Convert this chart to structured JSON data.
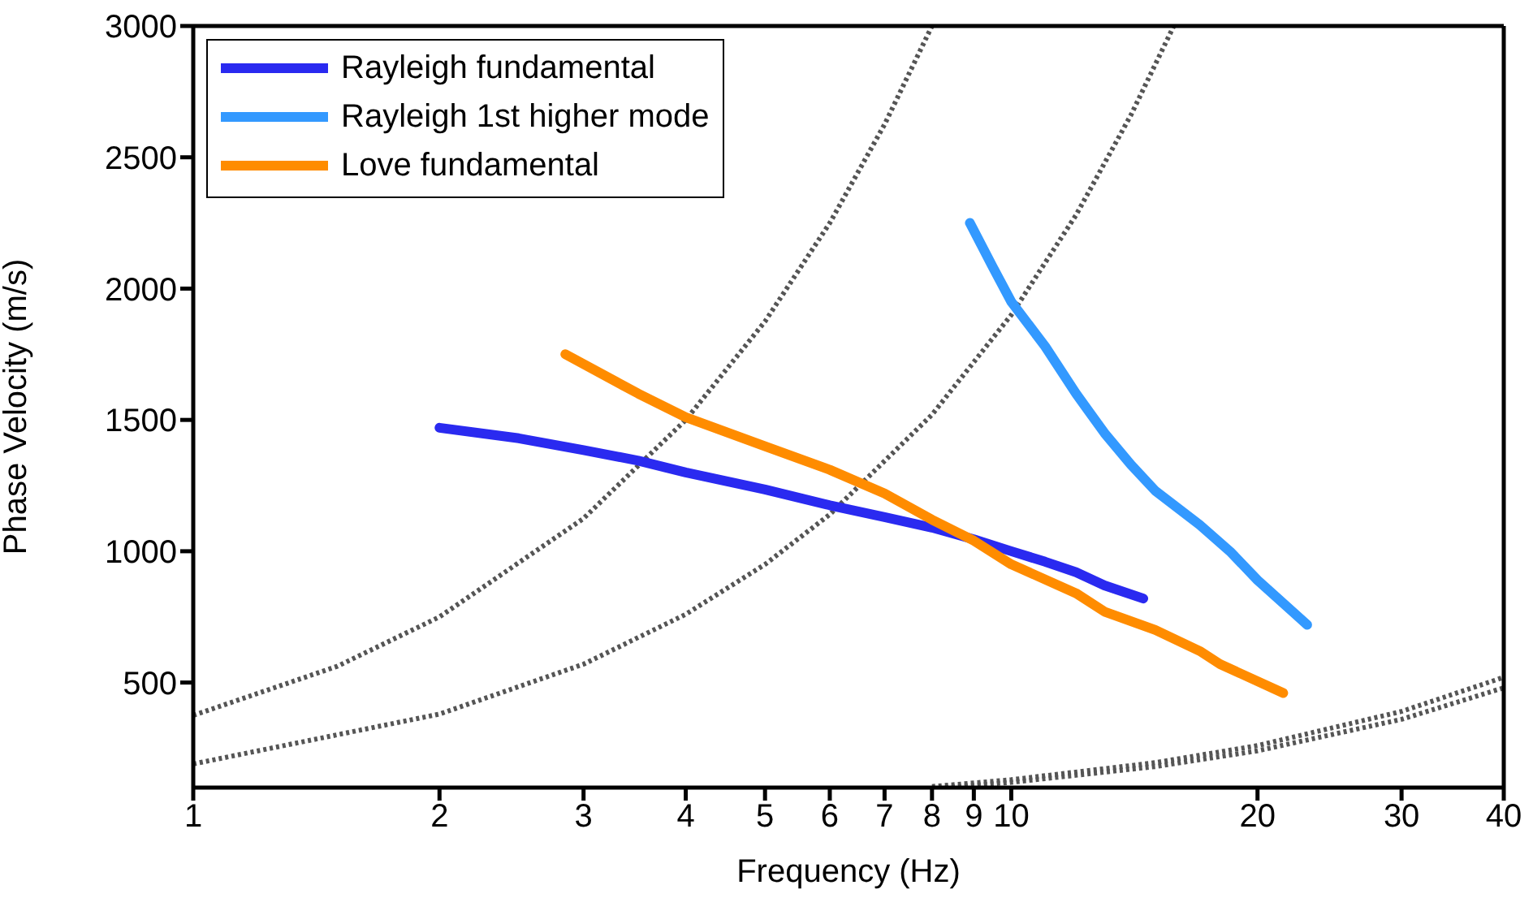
{
  "chart_data": {
    "type": "line",
    "xlabel": "Frequency (Hz)",
    "ylabel": "Phase Velocity (m/s)",
    "log": "x",
    "legend": "top left",
    "marker": "none",
    "line_style": "solid",
    "xlim": [
      1,
      40
    ],
    "xticks": [
      1,
      2,
      3,
      4,
      5,
      6,
      7,
      8,
      9,
      10,
      20,
      30,
      40
    ],
    "ylim": [
      100,
      3000
    ],
    "yticks": [
      500,
      1000,
      1500,
      2000,
      2500,
      3000
    ],
    "series": [
      {
        "color": "#555555",
        "line_style": "dotted",
        "x": [
          1,
          1.5,
          2,
          3,
          4,
          5,
          6,
          7,
          8
        ],
        "values": [
          375,
          562,
          750,
          1125,
          1500,
          1875,
          2250,
          2625,
          3000
        ]
      },
      {
        "color": "#555555",
        "line_style": "dotted",
        "x": [
          1,
          2,
          3,
          4,
          5,
          6,
          8,
          10,
          12,
          14,
          15.8
        ],
        "values": [
          190,
          380,
          570,
          760,
          950,
          1140,
          1520,
          1900,
          2280,
          2660,
          3000
        ]
      },
      {
        "color": "#555555",
        "line_style": "dotted",
        "x": [
          8,
          10,
          15,
          20,
          30,
          40
        ],
        "values": [
          104,
          130,
          195,
          260,
          390,
          520
        ]
      },
      {
        "color": "#555555",
        "line_style": "dotted",
        "x": [
          8.3,
          10,
          15,
          20,
          30,
          40
        ],
        "values": [
          100,
          120,
          180,
          240,
          360,
          480
        ]
      },
      {
        "name": "Rayleigh fundamental",
        "color": "#2a2af0",
        "x": [
          2,
          2.5,
          3,
          3.5,
          4,
          5,
          6,
          7,
          8,
          9,
          10,
          11,
          12,
          13,
          14.5
        ],
        "values": [
          1470,
          1430,
          1385,
          1345,
          1300,
          1235,
          1175,
          1130,
          1090,
          1045,
          1000,
          960,
          920,
          870,
          820
        ]
      },
      {
        "name": "Rayleigh 1st higher mode",
        "color": "#3399ff",
        "x": [
          8.9,
          9.5,
          10,
          11,
          12,
          13,
          14,
          15,
          17,
          18.5,
          20,
          23
        ],
        "values": [
          2250,
          2080,
          1950,
          1780,
          1600,
          1450,
          1330,
          1230,
          1100,
          1000,
          890,
          720
        ]
      },
      {
        "name": "Love fundamental",
        "color": "#ff8c00",
        "x": [
          2.85,
          3.5,
          4,
          5,
          6,
          7,
          8,
          9,
          10,
          12,
          13,
          15,
          17,
          18,
          21.5
        ],
        "values": [
          1750,
          1600,
          1510,
          1400,
          1310,
          1220,
          1120,
          1040,
          950,
          840,
          770,
          700,
          620,
          570,
          460
        ]
      }
    ]
  }
}
